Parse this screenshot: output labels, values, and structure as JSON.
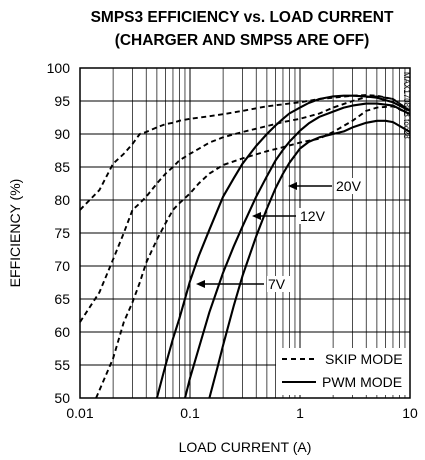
{
  "chart_data": {
    "type": "line",
    "title": [
      "SMPS3 EFFICIENCY vs. LOAD CURRENT",
      "(CHARGER AND SMPS5 ARE OFF)"
    ],
    "xlabel": "LOAD CURRENT (A)",
    "ylabel": "EFFICIENCY (%)",
    "xscale": "log",
    "xlim": [
      0.01,
      10
    ],
    "ylim": [
      50,
      100
    ],
    "x_ticks": [
      0.01,
      0.1,
      1,
      10
    ],
    "x_tick_labels": [
      "0.01",
      "0.1",
      "1",
      "10"
    ],
    "y_ticks": [
      50,
      55,
      60,
      65,
      70,
      75,
      80,
      85,
      90,
      95,
      100
    ],
    "y_tick_labels": [
      "50",
      "55",
      "60",
      "65",
      "70",
      "75",
      "80",
      "85",
      "90",
      "95",
      "100"
    ],
    "grid": true,
    "code_label": "MAX17085B toc28",
    "legend": {
      "placement": "bottom-right",
      "entries": [
        {
          "label": "SKIP MODE",
          "style": "dashed"
        },
        {
          "label": "PWM MODE",
          "style": "solid"
        }
      ]
    },
    "annotations": [
      "20V",
      "12V",
      "7V"
    ],
    "series": [
      {
        "mode": "skip",
        "input": "7V",
        "style": "dashed",
        "x": [
          0.01,
          0.015,
          0.02,
          0.025,
          0.03,
          0.035,
          0.04,
          0.05,
          0.06,
          0.07,
          0.08,
          0.1,
          0.15,
          0.2,
          0.3,
          0.5,
          1,
          1.5,
          2,
          3,
          4,
          5,
          7,
          10
        ],
        "y": [
          78.5,
          81.5,
          85.5,
          87,
          88.5,
          90,
          90.3,
          91,
          91.5,
          91.7,
          92,
          92.3,
          92.7,
          93,
          93.5,
          94.2,
          94.8,
          95.3,
          95.5,
          95.8,
          95.9,
          95.8,
          95.3,
          93.5
        ]
      },
      {
        "mode": "skip",
        "input": "12V",
        "style": "dashed",
        "x": [
          0.01,
          0.015,
          0.02,
          0.025,
          0.03,
          0.035,
          0.04,
          0.05,
          0.06,
          0.07,
          0.08,
          0.1,
          0.15,
          0.2,
          0.3,
          0.5,
          0.7,
          1,
          1.5,
          2,
          3,
          4,
          5,
          7,
          10
        ],
        "y": [
          61.5,
          66,
          71,
          75,
          78.5,
          79.5,
          80.5,
          82.5,
          84,
          85,
          86,
          87,
          88.7,
          89.5,
          90.3,
          91.2,
          91.8,
          92.3,
          93.1,
          94,
          95,
          95.6,
          95.7,
          95.3,
          93.5
        ]
      },
      {
        "mode": "skip",
        "input": "20V",
        "style": "dashed",
        "x": [
          0.014,
          0.02,
          0.025,
          0.03,
          0.035,
          0.04,
          0.05,
          0.06,
          0.07,
          0.08,
          0.1,
          0.12,
          0.15,
          0.2,
          0.3,
          0.5,
          0.7,
          1,
          1.5,
          2,
          3,
          4,
          5,
          7,
          10
        ],
        "y": [
          50,
          56,
          61.5,
          64.5,
          67.5,
          70.5,
          74,
          76.5,
          78.5,
          79.5,
          81,
          82.5,
          84,
          85.3,
          86.3,
          87.4,
          88,
          88.7,
          89.3,
          90.3,
          92,
          93.5,
          94,
          94.2,
          93
        ]
      },
      {
        "mode": "pwm",
        "input": "7V",
        "style": "solid",
        "x": [
          0.05,
          0.06,
          0.07,
          0.08,
          0.1,
          0.12,
          0.15,
          0.2,
          0.25,
          0.3,
          0.4,
          0.5,
          0.6,
          0.7,
          0.8,
          1,
          1.2,
          1.5,
          2,
          2.5,
          3,
          4,
          5,
          7,
          10
        ],
        "y": [
          50,
          55,
          59,
          62,
          67.7,
          71.5,
          75.5,
          80.5,
          83.3,
          85.5,
          88.2,
          90,
          91.3,
          92.3,
          93.1,
          94,
          94.7,
          95.3,
          95.7,
          95.8,
          95.8,
          95.7,
          95.5,
          94.8,
          93.5
        ]
      },
      {
        "mode": "pwm",
        "input": "12V",
        "style": "solid",
        "x": [
          0.09,
          0.1,
          0.12,
          0.15,
          0.2,
          0.25,
          0.3,
          0.4,
          0.5,
          0.6,
          0.7,
          0.8,
          1,
          1.2,
          1.5,
          2,
          2.5,
          3,
          4,
          5,
          7,
          10
        ],
        "y": [
          50,
          53,
          57.5,
          63,
          69,
          73,
          76,
          80.5,
          83.6,
          86,
          87.6,
          88.8,
          90.5,
          91.6,
          92.6,
          93.4,
          94,
          94.3,
          94.6,
          94.6,
          94.3,
          93
        ]
      },
      {
        "mode": "pwm",
        "input": "20V",
        "style": "solid",
        "x": [
          0.15,
          0.18,
          0.2,
          0.25,
          0.3,
          0.4,
          0.5,
          0.6,
          0.7,
          0.8,
          1,
          1.2,
          1.5,
          2,
          2.5,
          3,
          4,
          5,
          6,
          7,
          10
        ],
        "y": [
          50,
          55,
          58,
          64,
          68.5,
          74.5,
          78.7,
          81.8,
          84,
          85.6,
          87.8,
          88.8,
          89.5,
          90,
          90.4,
          91,
          91.7,
          92,
          92,
          91.8,
          90.3
        ]
      }
    ]
  }
}
